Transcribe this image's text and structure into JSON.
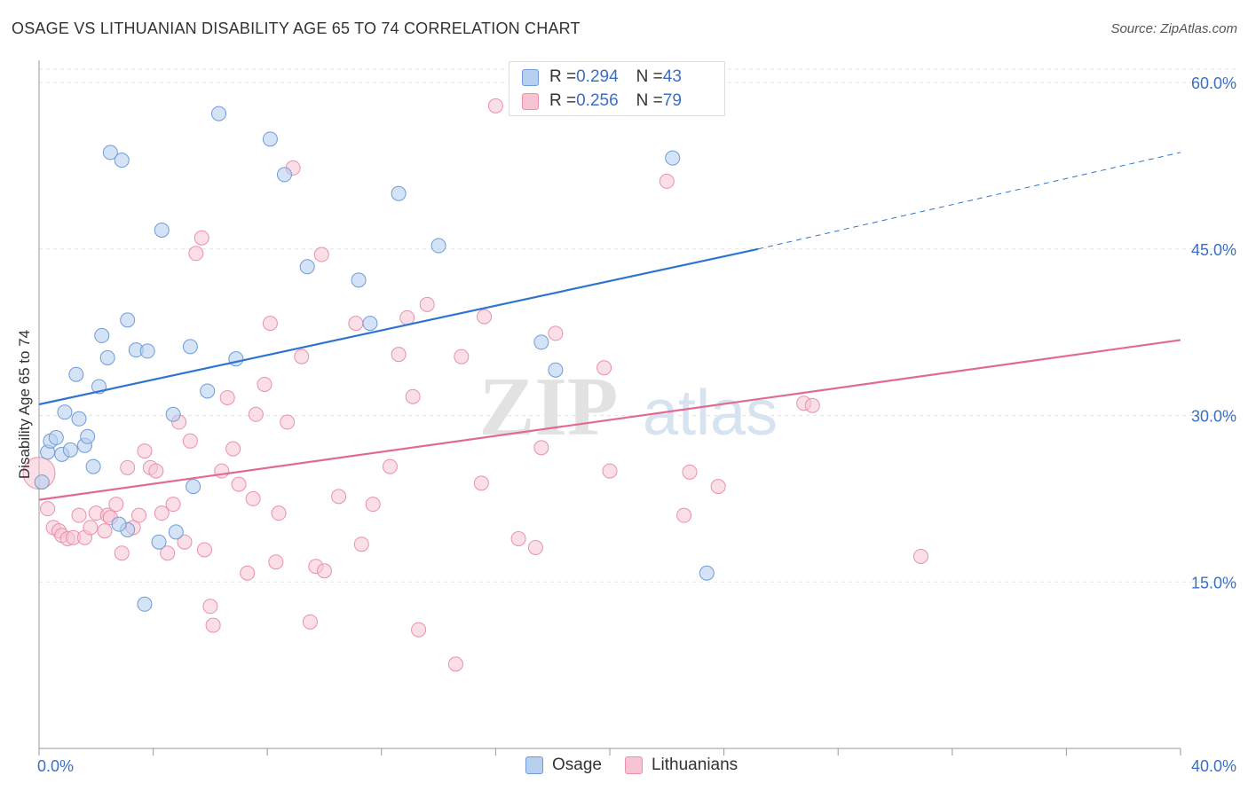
{
  "title": "OSAGE VS LITHUANIAN DISABILITY AGE 65 TO 74 CORRELATION CHART",
  "source": "Source: ZipAtlas.com",
  "watermark": {
    "zip": "ZIP",
    "atlas": "atlas"
  },
  "legend": {
    "osage": {
      "r_label": "R = ",
      "r": "0.294",
      "n_label": "N = ",
      "n": "43"
    },
    "lithuanians": {
      "r_label": "R = ",
      "r": "0.256",
      "n_label": "N = ",
      "n": "79"
    }
  },
  "colors": {
    "osage_fill": "#b8d0f0",
    "osage_stroke": "#6f9bd8",
    "osage_line": "#2f74d0",
    "lith_fill": "#f8c4d3",
    "lith_stroke": "#ea90ab",
    "lith_line": "#e26a90",
    "tick_text": "#3a6fc4",
    "grid": "#e3e3e3"
  },
  "chart_data": {
    "type": "scatter",
    "title": "OSAGE VS LITHUANIAN DISABILITY AGE 65 TO 74 CORRELATION CHART",
    "xlabel": "",
    "ylabel": "Disability Age 65 to 74",
    "xlim": [
      0,
      40
    ],
    "ylim": [
      0,
      62
    ],
    "x_tick_labels": [
      "0.0%",
      "40.0%"
    ],
    "y_ticks": [
      15,
      30,
      45,
      60
    ],
    "y_tick_labels": [
      "15.0%",
      "30.0%",
      "45.0%",
      "60.0%"
    ],
    "grid": true,
    "legend_position": "top-center",
    "series": [
      {
        "name": "Osage",
        "trend": {
          "x": [
            0,
            25.2
          ],
          "y": [
            31.0,
            45.0
          ],
          "dashed_to": [
            40,
            53.7
          ]
        },
        "points": [
          [
            0.1,
            24.0
          ],
          [
            0.3,
            26.7
          ],
          [
            0.4,
            27.7
          ],
          [
            0.6,
            28.0
          ],
          [
            0.8,
            26.5
          ],
          [
            0.9,
            30.3
          ],
          [
            1.1,
            26.9
          ],
          [
            1.3,
            33.7
          ],
          [
            1.4,
            29.7
          ],
          [
            1.6,
            27.3
          ],
          [
            1.7,
            28.1
          ],
          [
            1.9,
            25.4
          ],
          [
            2.1,
            32.6
          ],
          [
            2.2,
            37.2
          ],
          [
            2.4,
            35.2
          ],
          [
            2.5,
            53.7
          ],
          [
            2.9,
            53.0
          ],
          [
            3.1,
            19.7
          ],
          [
            3.1,
            38.6
          ],
          [
            3.4,
            35.9
          ],
          [
            3.7,
            13.0
          ],
          [
            3.8,
            35.8
          ],
          [
            4.2,
            18.6
          ],
          [
            4.3,
            46.7
          ],
          [
            4.7,
            30.1
          ],
          [
            4.8,
            19.5
          ],
          [
            5.3,
            36.2
          ],
          [
            5.4,
            23.6
          ],
          [
            5.9,
            32.2
          ],
          [
            6.3,
            57.2
          ],
          [
            6.9,
            35.1
          ],
          [
            8.1,
            54.9
          ],
          [
            8.6,
            51.7
          ],
          [
            9.4,
            43.4
          ],
          [
            11.2,
            42.2
          ],
          [
            11.6,
            38.3
          ],
          [
            12.6,
            50.0
          ],
          [
            14.0,
            45.3
          ],
          [
            17.6,
            36.6
          ],
          [
            18.1,
            34.1
          ],
          [
            22.2,
            53.2
          ],
          [
            23.4,
            15.8
          ],
          [
            2.8,
            20.2
          ]
        ]
      },
      {
        "name": "Lithuanians",
        "trend": {
          "x": [
            0,
            40
          ],
          "y": [
            22.4,
            36.8
          ]
        },
        "points": [
          [
            0.0,
            24.8
          ],
          [
            0.3,
            21.6
          ],
          [
            0.5,
            19.9
          ],
          [
            0.7,
            19.6
          ],
          [
            0.8,
            19.2
          ],
          [
            1.0,
            18.9
          ],
          [
            1.2,
            19.0
          ],
          [
            1.4,
            21.0
          ],
          [
            1.6,
            19.0
          ],
          [
            1.8,
            19.9
          ],
          [
            2.0,
            21.2
          ],
          [
            2.3,
            19.6
          ],
          [
            2.4,
            21.0
          ],
          [
            2.5,
            20.8
          ],
          [
            2.7,
            22.0
          ],
          [
            2.9,
            17.6
          ],
          [
            3.1,
            25.3
          ],
          [
            3.3,
            19.9
          ],
          [
            3.5,
            21.0
          ],
          [
            3.7,
            26.8
          ],
          [
            3.9,
            25.3
          ],
          [
            4.1,
            25.0
          ],
          [
            4.3,
            21.2
          ],
          [
            4.5,
            17.6
          ],
          [
            4.7,
            22.0
          ],
          [
            4.9,
            29.4
          ],
          [
            5.1,
            18.6
          ],
          [
            5.3,
            27.7
          ],
          [
            5.5,
            44.6
          ],
          [
            5.7,
            46.0
          ],
          [
            5.8,
            17.9
          ],
          [
            6.0,
            12.8
          ],
          [
            6.1,
            11.1
          ],
          [
            6.4,
            25.0
          ],
          [
            6.6,
            31.6
          ],
          [
            6.8,
            27.0
          ],
          [
            7.0,
            23.8
          ],
          [
            7.3,
            15.8
          ],
          [
            7.5,
            22.5
          ],
          [
            7.6,
            30.1
          ],
          [
            7.9,
            32.8
          ],
          [
            8.1,
            38.3
          ],
          [
            8.3,
            16.8
          ],
          [
            8.4,
            21.2
          ],
          [
            8.7,
            29.4
          ],
          [
            8.9,
            52.3
          ],
          [
            9.2,
            35.3
          ],
          [
            9.5,
            11.4
          ],
          [
            9.7,
            16.4
          ],
          [
            9.9,
            44.5
          ],
          [
            10.0,
            16.0
          ],
          [
            10.5,
            22.7
          ],
          [
            11.1,
            38.3
          ],
          [
            11.3,
            18.4
          ],
          [
            11.7,
            22.0
          ],
          [
            12.3,
            25.4
          ],
          [
            12.6,
            35.5
          ],
          [
            12.9,
            38.8
          ],
          [
            13.1,
            31.7
          ],
          [
            13.3,
            10.7
          ],
          [
            13.6,
            40.0
          ],
          [
            14.6,
            7.6
          ],
          [
            14.8,
            35.3
          ],
          [
            15.5,
            23.9
          ],
          [
            15.6,
            38.9
          ],
          [
            16.0,
            57.9
          ],
          [
            16.8,
            18.9
          ],
          [
            17.4,
            18.1
          ],
          [
            17.6,
            27.1
          ],
          [
            18.1,
            37.4
          ],
          [
            19.8,
            34.3
          ],
          [
            20.0,
            25.0
          ],
          [
            22.0,
            51.1
          ],
          [
            22.6,
            21.0
          ],
          [
            22.8,
            24.9
          ],
          [
            23.8,
            23.6
          ],
          [
            26.8,
            31.1
          ],
          [
            27.1,
            30.9
          ],
          [
            30.9,
            17.3
          ]
        ]
      }
    ]
  },
  "bottom_legend": {
    "osage": "Osage",
    "lithuanians": "Lithuanians"
  }
}
